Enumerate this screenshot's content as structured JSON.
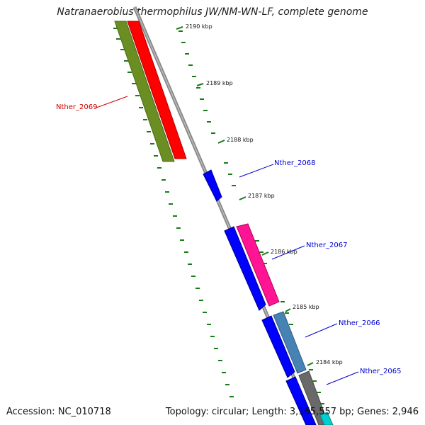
{
  "title": "Natranaerobius thermophilus JW/NM-WN-LF, complete genome",
  "footer": {
    "accession": "Accession: NC_010718",
    "topology": "Topology: circular; Length: 3,165,557 bp; Genes: 2,946"
  },
  "ticks": [
    "2190 kbp",
    "2189 kbp",
    "2188 kbp",
    "2187 kbp",
    "2186 kbp",
    "2185 kbp",
    "2184 kbp"
  ],
  "genes": [
    {
      "label": "Nther_2069",
      "color": "#cc0000"
    },
    {
      "label": "Nther_2068",
      "color": "#0000cc"
    },
    {
      "label": "Nther_2067",
      "color": "#0000cc"
    },
    {
      "label": "Nther_2066",
      "color": "#0000cc"
    },
    {
      "label": "Nther_2065",
      "color": "#0000cc"
    }
  ],
  "feature_colors": {
    "olive": "#6b8e23",
    "red": "#ff0000",
    "blue": "#0000ff",
    "pink": "#ff1493",
    "steelblue": "#4682b4",
    "gray": "#696969",
    "cyan": "#00ced1",
    "backbone": "#888888",
    "tick": "#1a7a1a"
  }
}
